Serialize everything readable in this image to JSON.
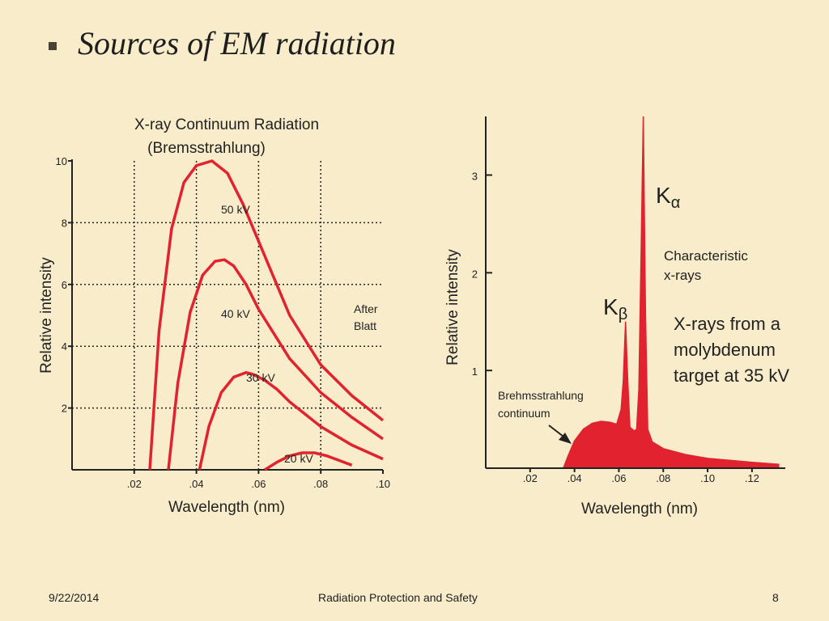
{
  "slide": {
    "title": "Sources of EM radiation",
    "footer_date": "9/22/2014",
    "footer_center": "Radiation Protection and Safety",
    "page_number": "8"
  },
  "colors": {
    "curve": "#e0232e",
    "background": "#f8eccb",
    "text": "#222222"
  },
  "chart_data": [
    {
      "type": "line",
      "title": "X-ray Continuum Radiation",
      "subtitle": "(Bremsstrahlung)",
      "xlabel": "Wavelength (nm)",
      "ylabel": "Relative intensity",
      "xlim": [
        0,
        0.1
      ],
      "ylim": [
        0,
        10
      ],
      "x_ticks": [
        ".02",
        ".04",
        ".06",
        ".08",
        ".10"
      ],
      "y_ticks": [
        "2",
        "4",
        "6",
        "8",
        "10"
      ],
      "grid": true,
      "annotation": [
        "After",
        "Blatt"
      ],
      "series": [
        {
          "name": "50 kV",
          "x": [
            0.025,
            0.028,
            0.032,
            0.036,
            0.04,
            0.045,
            0.05,
            0.055,
            0.06,
            0.07,
            0.08,
            0.09,
            0.1
          ],
          "y": [
            0,
            4.5,
            7.8,
            9.3,
            9.85,
            10.0,
            9.6,
            8.6,
            7.4,
            5.0,
            3.4,
            2.4,
            1.6
          ]
        },
        {
          "name": "40 kV",
          "x": [
            0.031,
            0.034,
            0.038,
            0.042,
            0.046,
            0.049,
            0.052,
            0.056,
            0.06,
            0.07,
            0.08,
            0.09,
            0.1
          ],
          "y": [
            0,
            2.8,
            5.1,
            6.3,
            6.75,
            6.8,
            6.6,
            6.0,
            5.2,
            3.6,
            2.5,
            1.7,
            1.0
          ]
        },
        {
          "name": "30 kV",
          "x": [
            0.041,
            0.044,
            0.048,
            0.052,
            0.056,
            0.058,
            0.062,
            0.066,
            0.07,
            0.08,
            0.09,
            0.1
          ],
          "y": [
            0,
            1.4,
            2.5,
            3.0,
            3.15,
            3.1,
            2.9,
            2.6,
            2.2,
            1.4,
            0.8,
            0.35
          ]
        },
        {
          "name": "20 kV",
          "x": [
            0.062,
            0.066,
            0.07,
            0.074,
            0.078,
            0.082,
            0.086,
            0.09
          ],
          "y": [
            0,
            0.25,
            0.45,
            0.55,
            0.55,
            0.45,
            0.3,
            0.15
          ]
        }
      ]
    },
    {
      "type": "area",
      "xlabel": "Wavelength (nm)",
      "ylabel": "Relative intensity",
      "xlim": [
        0.0,
        0.135
      ],
      "ylim": [
        0,
        3.6
      ],
      "x_ticks": [
        ".02",
        ".04",
        ".06",
        ".08",
        ".10",
        ".12"
      ],
      "y_ticks": [
        "1",
        "2",
        "3"
      ],
      "grid": false,
      "peaks": [
        {
          "label": "K",
          "subscript": "β",
          "x": 0.063,
          "y": 1.5
        },
        {
          "label": "K",
          "subscript": "α",
          "x": 0.071,
          "y": 3.6
        }
      ],
      "annotations": {
        "characteristic": [
          "Characteristic",
          "x-rays"
        ],
        "continuum": [
          "Brehmsstrahlung",
          "continuum"
        ],
        "source": [
          "X-rays from a",
          "molybdenum",
          "target at 35 kV"
        ]
      },
      "series": [
        {
          "x": [
            0.035,
            0.037,
            0.04,
            0.044,
            0.048,
            0.052,
            0.056,
            0.059,
            0.061,
            0.062,
            0.063,
            0.064,
            0.065,
            0.067,
            0.068,
            0.069,
            0.07,
            0.071,
            0.072,
            0.073,
            0.075,
            0.08,
            0.09,
            0.1,
            0.11,
            0.12,
            0.132
          ],
          "y": [
            0,
            0.12,
            0.28,
            0.4,
            0.46,
            0.48,
            0.47,
            0.45,
            0.6,
            0.9,
            1.5,
            0.9,
            0.42,
            0.38,
            0.4,
            0.8,
            2.2,
            3.6,
            1.6,
            0.4,
            0.27,
            0.2,
            0.14,
            0.1,
            0.08,
            0.06,
            0.04
          ]
        }
      ]
    }
  ]
}
